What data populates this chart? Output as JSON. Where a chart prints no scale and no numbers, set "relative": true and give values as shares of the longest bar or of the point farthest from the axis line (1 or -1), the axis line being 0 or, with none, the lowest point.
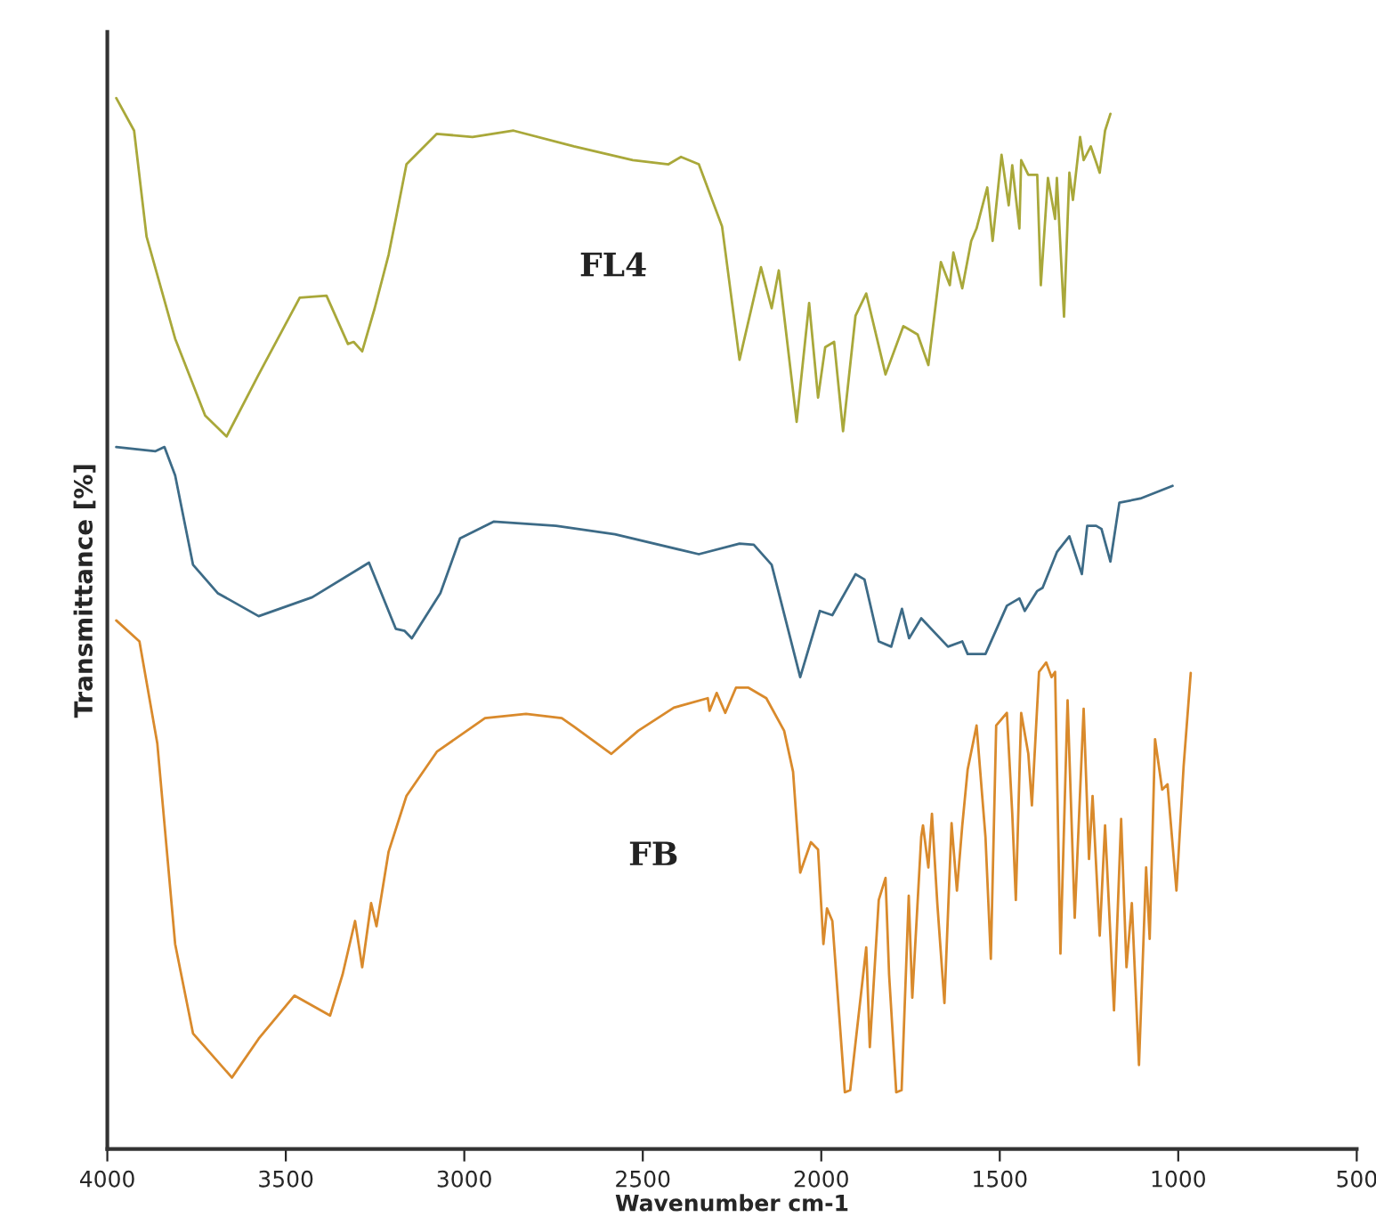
{
  "chart_data": {
    "type": "line",
    "xlabel": "Wavenumber cm-1",
    "ylabel": "Transmittance [%]",
    "relative": true,
    "xlim": [
      4000,
      500
    ],
    "xticks": [
      4000,
      3500,
      3000,
      2500,
      2000,
      1500,
      1000,
      500
    ],
    "grid": false,
    "legend": false,
    "line_style": "solid",
    "marker": "none",
    "series": [
      {
        "name": "FL4",
        "color": "#a9a83a",
        "x": [
          3975,
          3925,
          3890,
          3810,
          3726,
          3666,
          3576,
          3461,
          3386,
          3326,
          3310,
          3286,
          3251,
          3212,
          3192,
          3162,
          3077,
          2977,
          2862,
          2693,
          2528,
          2428,
          2393,
          2343,
          2278,
          2229,
          2169,
          2139,
          2119,
          2069,
          2034,
          2009,
          1989,
          1964,
          1939,
          1904,
          1874,
          1820,
          1770,
          1730,
          1700,
          1665,
          1640,
          1630,
          1605,
          1580,
          1565,
          1535,
          1520,
          1495,
          1475,
          1465,
          1445,
          1440,
          1420,
          1395,
          1385,
          1365,
          1345,
          1340,
          1320,
          1305,
          1295,
          1275,
          1265,
          1245,
          1220,
          1205,
          1190
        ],
        "values": [
          1.0,
          0.969,
          0.868,
          0.771,
          0.698,
          0.678,
          0.737,
          0.81,
          0.812,
          0.766,
          0.768,
          0.759,
          0.8,
          0.851,
          0.885,
          0.937,
          0.966,
          0.963,
          0.969,
          0.954,
          0.941,
          0.937,
          0.944,
          0.937,
          0.878,
          0.751,
          0.839,
          0.8,
          0.836,
          0.692,
          0.805,
          0.715,
          0.763,
          0.768,
          0.683,
          0.793,
          0.814,
          0.737,
          0.783,
          0.775,
          0.746,
          0.844,
          0.822,
          0.853,
          0.819,
          0.864,
          0.876,
          0.915,
          0.864,
          0.946,
          0.898,
          0.936,
          0.876,
          0.941,
          0.927,
          0.927,
          0.822,
          0.924,
          0.885,
          0.924,
          0.792,
          0.929,
          0.903,
          0.963,
          0.941,
          0.954,
          0.929,
          0.969,
          0.985
        ]
      },
      {
        "color": "#3d6b87",
        "x": [
          3975,
          3865,
          3840,
          3810,
          3760,
          3691,
          3576,
          3426,
          3267,
          3192,
          3167,
          3147,
          3067,
          3012,
          2918,
          2743,
          2578,
          2343,
          2229,
          2189,
          2139,
          2059,
          2004,
          1969,
          1904,
          1879,
          1839,
          1804,
          1774,
          1754,
          1720,
          1645,
          1605,
          1590,
          1540,
          1480,
          1445,
          1430,
          1395,
          1380,
          1340,
          1305,
          1270,
          1255,
          1230,
          1215,
          1190,
          1165,
          1106,
          1016
        ],
        "values": [
          0.668,
          0.664,
          0.668,
          0.641,
          0.556,
          0.529,
          0.507,
          0.525,
          0.558,
          0.495,
          0.493,
          0.486,
          0.529,
          0.581,
          0.597,
          0.593,
          0.585,
          0.566,
          0.576,
          0.575,
          0.556,
          0.449,
          0.512,
          0.508,
          0.547,
          0.542,
          0.483,
          0.478,
          0.514,
          0.486,
          0.505,
          0.478,
          0.483,
          0.471,
          0.471,
          0.517,
          0.524,
          0.512,
          0.531,
          0.534,
          0.568,
          0.583,
          0.547,
          0.593,
          0.593,
          0.59,
          0.559,
          0.615,
          0.619,
          0.631
        ]
      },
      {
        "name": "FB",
        "color": "#d98a2c",
        "x": [
          3975,
          3910,
          3860,
          3810,
          3760,
          3651,
          3576,
          3476,
          3376,
          3341,
          3306,
          3286,
          3261,
          3246,
          3212,
          3162,
          3077,
          2942,
          2827,
          2727,
          2693,
          2588,
          2513,
          2413,
          2318,
          2313,
          2293,
          2269,
          2239,
          2204,
          2154,
          2104,
          2079,
          2059,
          2029,
          2009,
          1994,
          1984,
          1969,
          1934,
          1919,
          1874,
          1864,
          1839,
          1820,
          1810,
          1790,
          1775,
          1755,
          1745,
          1720,
          1715,
          1700,
          1690,
          1675,
          1655,
          1635,
          1620,
          1605,
          1590,
          1565,
          1540,
          1525,
          1510,
          1480,
          1465,
          1455,
          1440,
          1420,
          1410,
          1390,
          1370,
          1355,
          1345,
          1330,
          1310,
          1290,
          1265,
          1250,
          1240,
          1220,
          1205,
          1180,
          1160,
          1145,
          1130,
          1110,
          1090,
          1080,
          1065,
          1045,
          1030,
          1005,
          985,
          965
        ],
        "values": [
          0.503,
          0.483,
          0.386,
          0.195,
          0.11,
          0.068,
          0.105,
          0.146,
          0.127,
          0.166,
          0.217,
          0.173,
          0.234,
          0.212,
          0.283,
          0.336,
          0.378,
          0.41,
          0.414,
          0.41,
          0.402,
          0.376,
          0.398,
          0.42,
          0.429,
          0.417,
          0.434,
          0.415,
          0.439,
          0.439,
          0.429,
          0.398,
          0.359,
          0.263,
          0.292,
          0.285,
          0.195,
          0.229,
          0.217,
          0.054,
          0.056,
          0.192,
          0.097,
          0.237,
          0.258,
          0.166,
          0.054,
          0.056,
          0.241,
          0.144,
          0.297,
          0.308,
          0.268,
          0.319,
          0.234,
          0.139,
          0.31,
          0.246,
          0.308,
          0.361,
          0.403,
          0.297,
          0.181,
          0.403,
          0.415,
          0.319,
          0.237,
          0.415,
          0.376,
          0.327,
          0.454,
          0.463,
          0.449,
          0.454,
          0.186,
          0.427,
          0.22,
          0.419,
          0.276,
          0.336,
          0.203,
          0.308,
          0.132,
          0.314,
          0.173,
          0.234,
          0.08,
          0.268,
          0.2,
          0.39,
          0.342,
          0.347,
          0.246,
          0.364,
          0.453
        ]
      }
    ]
  }
}
